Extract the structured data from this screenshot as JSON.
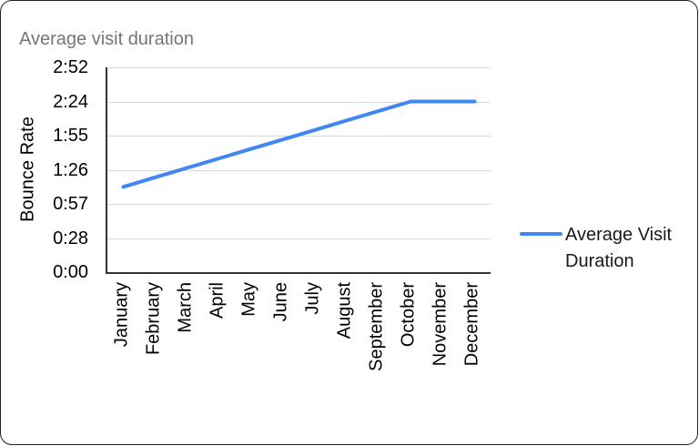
{
  "chart_data": {
    "type": "line",
    "title": "Average visit duration",
    "xlabel": "",
    "ylabel": "Bounce Rate",
    "categories": [
      "January",
      "February",
      "March",
      "April",
      "May",
      "June",
      "July",
      "August",
      "September",
      "October",
      "November",
      "December"
    ],
    "series": [
      {
        "name": "Average Visit Duration",
        "color": "#4285f4",
        "values_seconds": [
          72,
          80,
          88,
          96,
          104,
          112,
          120,
          128,
          136,
          144,
          144,
          144
        ],
        "values_display": [
          "1:12",
          "1:20",
          "1:28",
          "1:36",
          "1:44",
          "1:52",
          "2:00",
          "2:08",
          "2:16",
          "2:24",
          "2:24",
          "2:24"
        ]
      }
    ],
    "y_axis": {
      "min_seconds": 0,
      "max_seconds": 172.8,
      "tick_interval_seconds": 28.8,
      "tick_labels_top_to_bottom": [
        "2:52",
        "2:24",
        "1:55",
        "1:26",
        "0:57",
        "0:28",
        "0:00"
      ]
    },
    "grid": true,
    "legend_position": "right"
  },
  "legend": {
    "label": "Average Visit Duration"
  },
  "colors": {
    "line": "#4285f4",
    "gridline": "#d9d9d9",
    "axis": "#333333",
    "tick_text": "#000000",
    "title_text": "#757575",
    "legend_text": "#1a1a1a",
    "card_border": "#202124",
    "card_background": "#ffffff"
  }
}
